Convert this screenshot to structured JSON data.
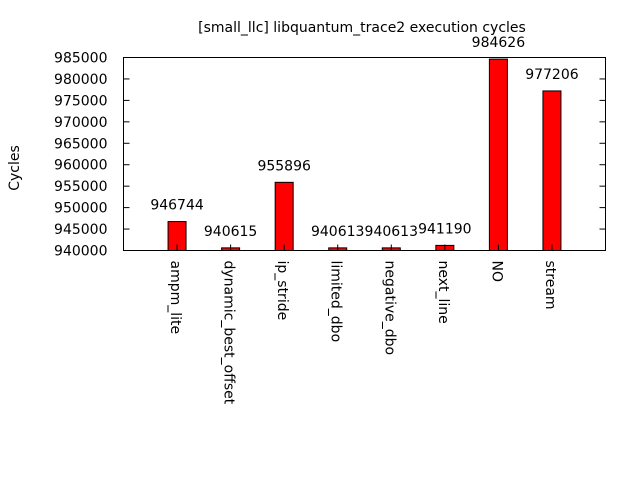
{
  "chart_data": {
    "type": "bar",
    "title": "[small_llc] libquantum_trace2 execution cycles",
    "xlabel": "",
    "ylabel": "Cycles",
    "categories": [
      "ampm_lite",
      "dynamic_best_offset",
      "ip_stride",
      "limited_dbo",
      "negative_dbo",
      "next_line",
      "NO",
      "stream"
    ],
    "values": [
      946744,
      940615,
      955896,
      940613,
      940613,
      941190,
      984626,
      977206
    ],
    "data_labels": [
      "946744",
      "940615",
      "955896",
      "940613",
      "940613",
      "941190",
      "984626",
      "977206"
    ],
    "ylim": [
      940000,
      985000
    ],
    "yticks": [
      940000,
      945000,
      950000,
      955000,
      960000,
      965000,
      970000,
      975000,
      980000,
      985000
    ],
    "ytick_labels": [
      "940000",
      "945000",
      "950000",
      "955000",
      "960000",
      "965000",
      "970000",
      "975000",
      "980000",
      "985000"
    ],
    "grid": false,
    "legend": "none",
    "bar_color": "#ff0000"
  }
}
